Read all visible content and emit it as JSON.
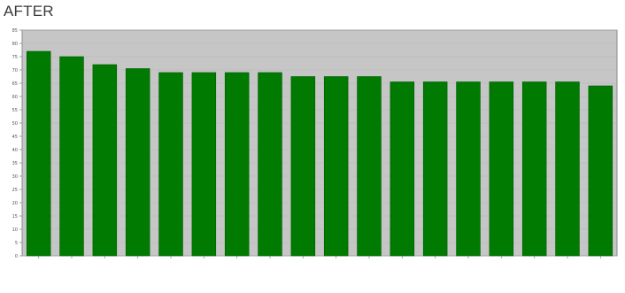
{
  "title": "AFTER",
  "chart_data": {
    "type": "bar",
    "categories": [
      "",
      "",
      "",
      "",
      "",
      "",
      "",
      "",
      "",
      "",
      "",
      "",
      "",
      "",
      "",
      "",
      "",
      ""
    ],
    "values": [
      77,
      75,
      72,
      70.5,
      69,
      69,
      69,
      69,
      67.5,
      67.5,
      67.5,
      65.5,
      65.5,
      65.5,
      65.5,
      65.5,
      65.5,
      64
    ],
    "title": "AFTER",
    "xlabel": "",
    "ylabel": "",
    "ylim": [
      0,
      85
    ],
    "yticks": [
      0,
      5,
      10,
      15,
      20,
      25,
      30,
      35,
      40,
      45,
      50,
      55,
      60,
      65,
      70,
      75,
      80,
      85
    ],
    "grid": true,
    "legend": "none",
    "colors": {
      "bar": "#007a00",
      "bar_edge": "#005f00",
      "plot_bg": "#c6c6c6",
      "axis": "#8a8a8a"
    }
  }
}
